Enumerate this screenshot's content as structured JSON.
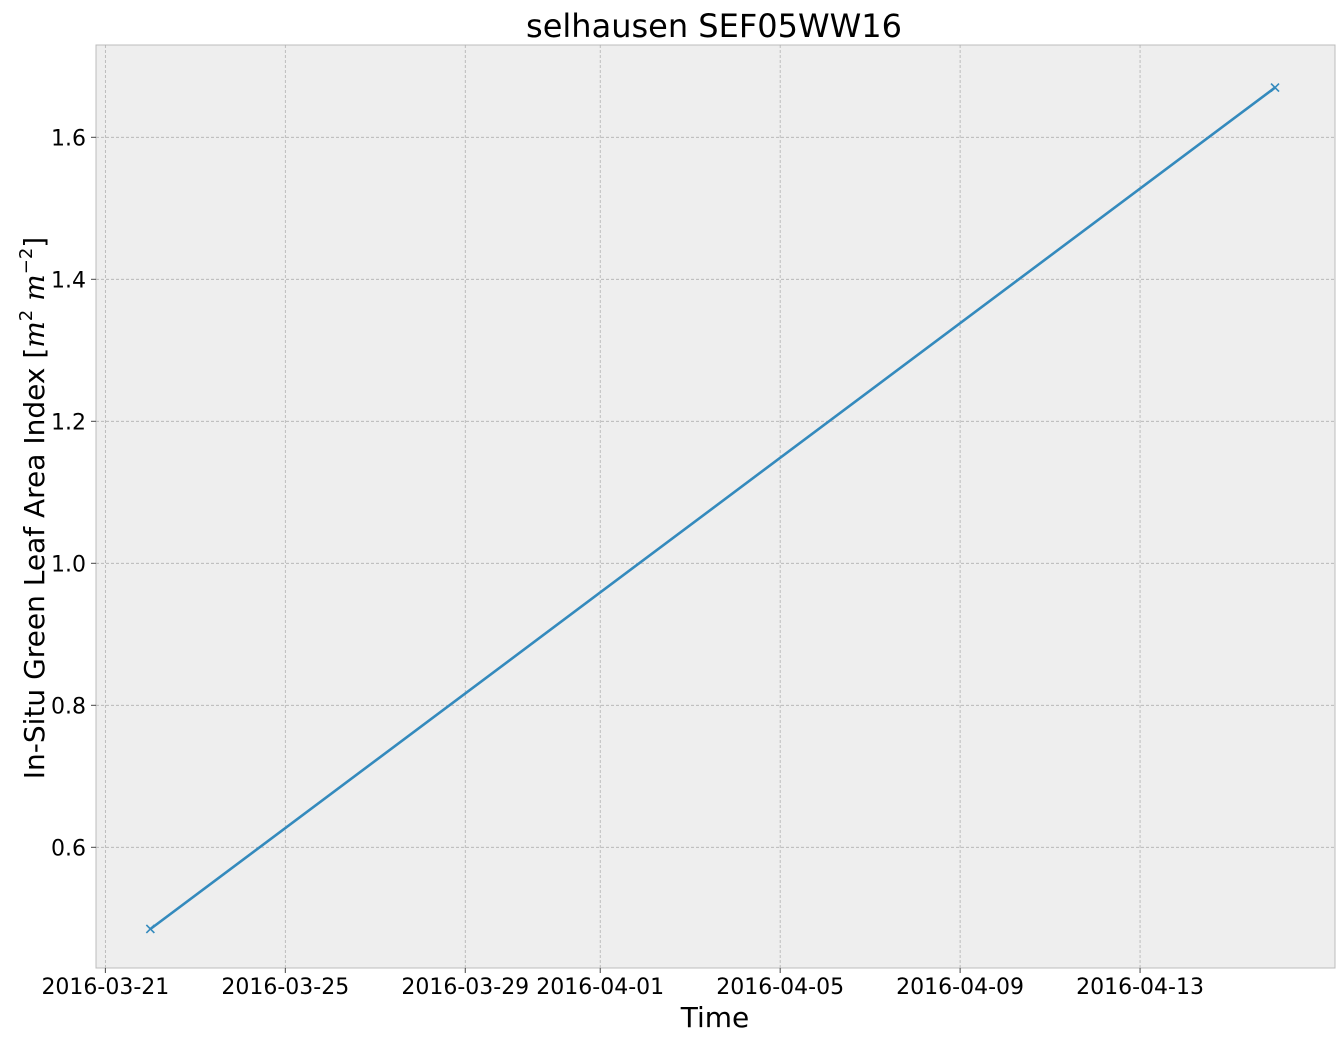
{
  "chart_data": {
    "type": "line",
    "title": "selhausen SEF05WW16",
    "xlabel": "Time",
    "ylabel": "In-Situ Green Leaf Area Index [m² m⁻²]",
    "ylabel_unit_base": "m",
    "ylabel_unit_exp1": "2",
    "ylabel_unit_exp2": "−2",
    "x_ticks": [
      "2016-03-21",
      "2016-03-25",
      "2016-03-29",
      "2016-04-01",
      "2016-04-05",
      "2016-04-09",
      "2016-04-13"
    ],
    "y_ticks": [
      "0.6",
      "0.8",
      "1.0",
      "1.2",
      "1.4",
      "1.6"
    ],
    "xlim": [
      "2016-03-20T19:00",
      "2016-04-17T08:00"
    ],
    "ylim": [
      0.43,
      1.73
    ],
    "grid": true,
    "marker": "x",
    "series": [
      {
        "x": [
          "2016-03-22",
          "2016-04-16"
        ],
        "y": [
          0.485,
          1.67
        ]
      }
    ],
    "colors": {
      "series": "#348abd",
      "background": "#eeeeee",
      "grid": "#b0b0b0"
    }
  }
}
